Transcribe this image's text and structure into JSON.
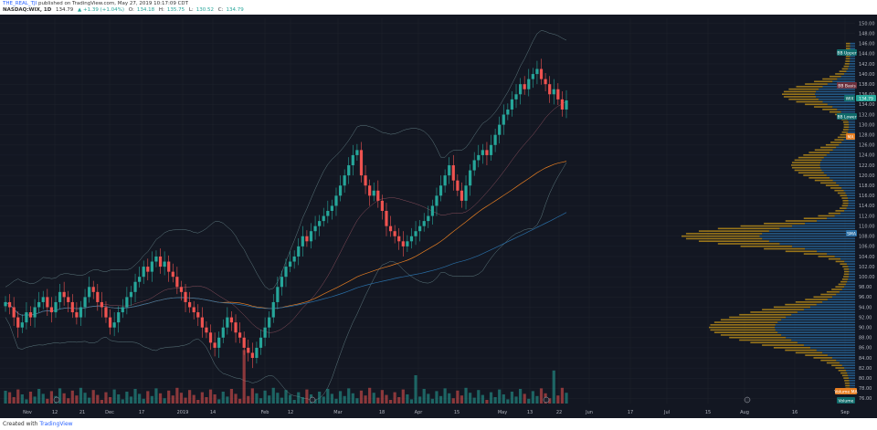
{
  "header": {
    "publisher_user": "THE_REAL_TJI",
    "published_text": "published on TradingView.com, May 27, 2019 10:17:09 CDT",
    "symbol": "NASDAQ:WIX, 1D",
    "price": "134.79",
    "change": "▲ +1.39 (+1.04%)",
    "ohlc": [
      {
        "k": "O:",
        "v": "134.18"
      },
      {
        "k": "H:",
        "v": "135.75"
      },
      {
        "k": "L:",
        "v": "130.52"
      },
      {
        "k": "C:",
        "v": "134.79"
      }
    ]
  },
  "footer": {
    "created_with": "Created with",
    "brand": "TradingView"
  },
  "colors": {
    "background": "#131722",
    "up": "#26a69a",
    "down": "#ef5350",
    "bb": "#7fa5a8",
    "ma_orange": "#e67e22",
    "vp_blue": "#2a6ea5",
    "vp_gold": "#d4a017",
    "axis_text": "#b2b5be"
  },
  "price_axis": {
    "ticks": [
      "150.00",
      "148.00",
      "146.00",
      "144.00",
      "142.00",
      "140.00",
      "138.00",
      "136.00",
      "134.00",
      "132.00",
      "130.00",
      "128.00",
      "126.00",
      "124.00",
      "122.00",
      "120.00",
      "118.00",
      "116.00",
      "114.00",
      "112.00",
      "110.00",
      "108.00",
      "106.00",
      "104.00",
      "102.00",
      "100.00",
      "98.00",
      "96.00",
      "94.00",
      "92.00",
      "90.00",
      "88.00",
      "86.00",
      "84.00",
      "82.00",
      "80.00",
      "78.00",
      "76.00"
    ],
    "ymin": 75,
    "ymax": 151
  },
  "time_axis": {
    "ticks": [
      "Nov",
      "12",
      "21",
      "Dec",
      "17",
      "2019",
      "14",
      "Feb",
      "12",
      "Mar",
      "18",
      "Apr",
      "15",
      "May",
      "13",
      "22",
      "Jun",
      "17",
      "Jul",
      "15",
      "Aug",
      "16",
      "Sep"
    ]
  },
  "badges": {
    "bb_upper": "BB Upper",
    "bb_basis": "BB Basis",
    "wix": "WIX",
    "wix_price": "134.79",
    "bb_lower": "BB Lower",
    "ma": "MA",
    "sma": "SMA",
    "volume_ma": "Volume MA",
    "volume": "Volume"
  },
  "chart_data": {
    "type": "candlestick",
    "series_closes": [
      95,
      94,
      92,
      90,
      91,
      93,
      92,
      94,
      95,
      96,
      94,
      93,
      95,
      97,
      96,
      95,
      93,
      92,
      94,
      96,
      98,
      97,
      95,
      94,
      92,
      90,
      91,
      93,
      94,
      96,
      97,
      99,
      100,
      102,
      101,
      103,
      104,
      102,
      103,
      101,
      100,
      98,
      97,
      95,
      94,
      93,
      92,
      90,
      89,
      87,
      86,
      88,
      90,
      92,
      91,
      89,
      88,
      86,
      85,
      84,
      86,
      88,
      90,
      92,
      95,
      98,
      100,
      102,
      103,
      104,
      106,
      108,
      107,
      109,
      110,
      111,
      112,
      113,
      114,
      116,
      118,
      120,
      122,
      124,
      125,
      120,
      118,
      116,
      117,
      115,
      113,
      110,
      109,
      108,
      107,
      106,
      107,
      108,
      109,
      110,
      111,
      112,
      114,
      116,
      118,
      120,
      122,
      119,
      117,
      115,
      118,
      121,
      123,
      124,
      125,
      124,
      126,
      128,
      130,
      132,
      133,
      135,
      136,
      138,
      137,
      139,
      140,
      141,
      139,
      138,
      136,
      137,
      135,
      133,
      134.79
    ],
    "bb_upper_level_label": "BB Upper",
    "last_close": 134.79,
    "ylim": [
      75,
      151
    ]
  }
}
